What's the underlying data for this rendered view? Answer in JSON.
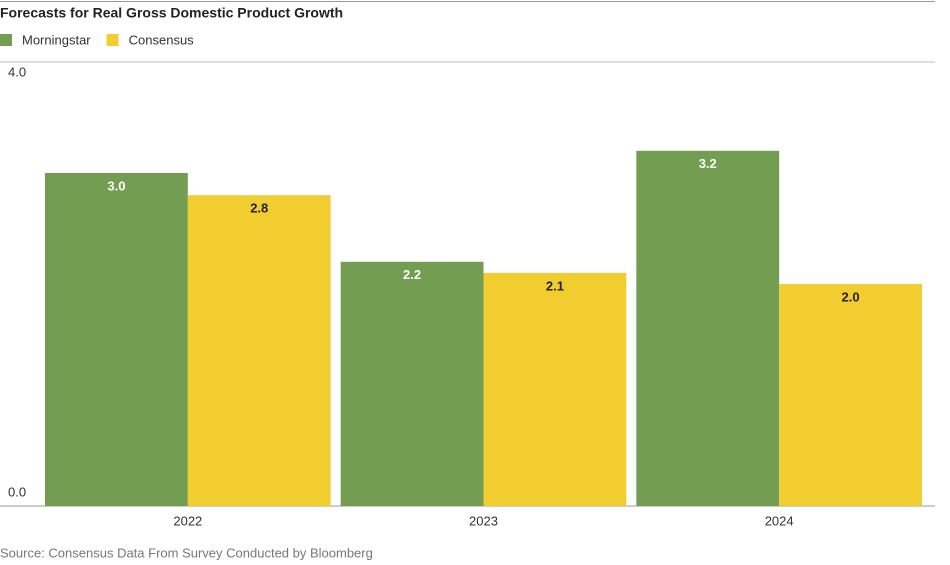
{
  "chart_data": {
    "type": "bar",
    "title": "Forecasts for Real Gross Domestic Product Growth",
    "categories": [
      "2022",
      "2023",
      "2024"
    ],
    "series": [
      {
        "name": "Morningstar",
        "color": "#739e52",
        "values": [
          3.0,
          2.2,
          3.2
        ],
        "value_labels": [
          "3.0",
          "2.2",
          "3.2"
        ],
        "label_color": "#ffffff"
      },
      {
        "name": "Consensus",
        "color": "#f2cd30",
        "values": [
          2.8,
          2.1,
          2.0
        ],
        "value_labels": [
          "2.8",
          "2.1",
          "2.0"
        ],
        "label_color": "#222222"
      }
    ],
    "ylim": [
      0,
      4
    ],
    "yticks": [
      {
        "value": 0,
        "label": "0.0"
      },
      {
        "value": 4,
        "label": "4.0"
      }
    ],
    "grid": true,
    "source": "Source: Consensus Data From Survey Conducted by Bloomberg"
  }
}
